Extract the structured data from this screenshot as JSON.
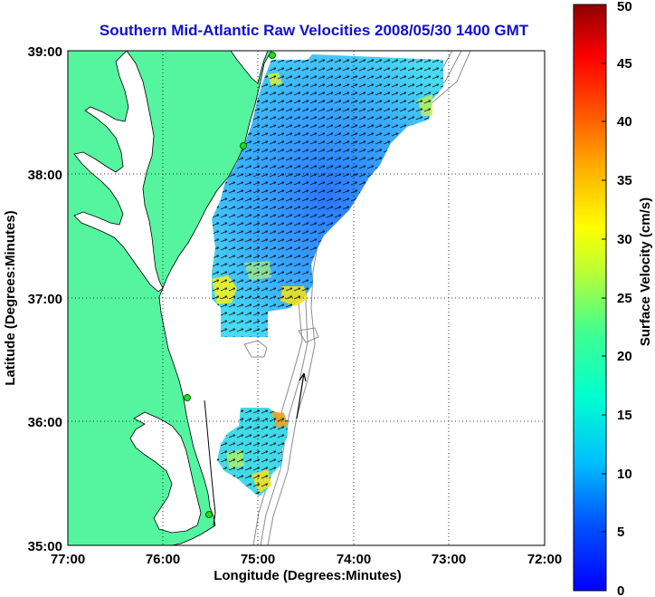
{
  "title": "Southern Mid-Atlantic Raw Velocities 2008/05/30 1400 GMT",
  "xlabel": "Longitude (Degrees:Minutes)",
  "ylabel": "Latitude (Degrees:Minutes)",
  "x_ticks": [
    "77:00",
    "76:00",
    "75:00",
    "74:00",
    "73:00",
    "72:00"
  ],
  "y_ticks": [
    "39:00",
    "38:00",
    "37:00",
    "36:00",
    "35:00"
  ],
  "colorbar": {
    "label": "Surface Velocity (cm/s)",
    "ticks": [
      "0",
      "5",
      "10",
      "15",
      "20",
      "25",
      "30",
      "35",
      "40",
      "45",
      "50"
    ],
    "min": 0,
    "max": 50
  },
  "colors": {
    "title": "#1010d0",
    "land": "#55f5a0",
    "coastline": "#000000",
    "isobath": "#8c8c8c",
    "grid": "#000000",
    "station": "#22dd22"
  }
}
